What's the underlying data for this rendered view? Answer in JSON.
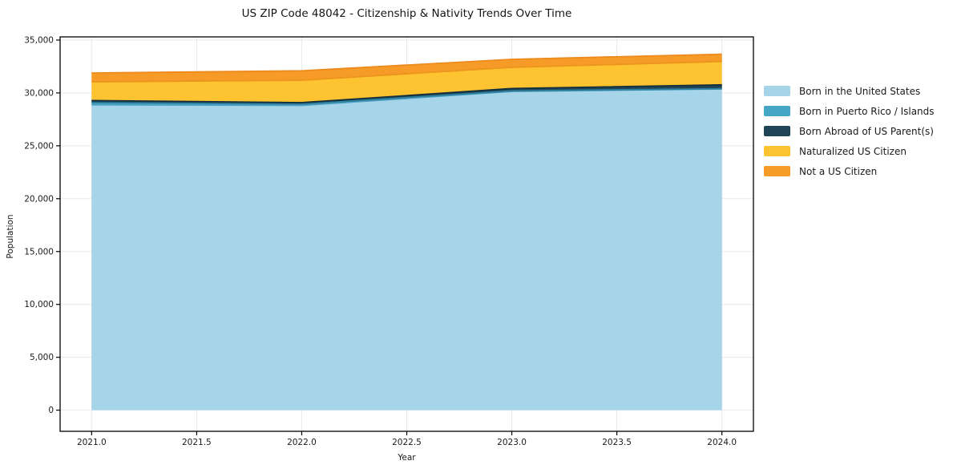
{
  "title": "US ZIP Code 48042 - Citizenship & Nativity Trends Over Time",
  "chart_data": {
    "type": "area",
    "stacked": true,
    "title": "US ZIP Code 48042 - Citizenship & Nativity Trends Over Time",
    "xlabel": "Year",
    "ylabel": "Population",
    "x": [
      2021,
      2022,
      2023,
      2024
    ],
    "series": [
      {
        "id": "born_us",
        "name": "Born in the United States",
        "color": "#a6d4e8",
        "edge": "#4d9fc2",
        "values": [
          28880,
          28820,
          30140,
          30370
        ]
      },
      {
        "id": "pr_islands",
        "name": "Born in Puerto Rico / Islands",
        "color": "#46a6c6",
        "edge": "#2e7f9e",
        "values": [
          200,
          120,
          50,
          30
        ]
      },
      {
        "id": "born_abroad",
        "name": "Born Abroad of US Parent(s)",
        "color": "#1f4557",
        "edge": "#14303e",
        "values": [
          200,
          140,
          230,
          370
        ]
      },
      {
        "id": "naturalized",
        "name": "Naturalized US Citizen",
        "color": "#fdc330",
        "edge": "#ec941d",
        "values": [
          1770,
          2120,
          2000,
          2200
        ]
      },
      {
        "id": "not_citizen",
        "name": "Not a US Citizen",
        "color": "#f79b28",
        "edge": "#ed8a1d",
        "values": [
          840,
          890,
          760,
          690
        ]
      }
    ],
    "totals": [
      31890,
      32090,
      33180,
      33660
    ],
    "x_ticks": [
      2021,
      2021.5,
      2022,
      2022.5,
      2023,
      2023.5,
      2024
    ],
    "x_tick_labels": [
      "2021.0",
      "2021.5",
      "2022.0",
      "2022.5",
      "2023.0",
      "2023.5",
      "2024.0"
    ],
    "y_ticks": [
      0,
      5000,
      10000,
      15000,
      20000,
      25000,
      30000,
      35000
    ],
    "y_tick_labels": [
      "0",
      "5,000",
      "10,000",
      "15,000",
      "20,000",
      "25,000",
      "30,000",
      "35,000"
    ],
    "xlim": [
      2020.85,
      2024.15
    ],
    "ylim": [
      -2000,
      35300
    ],
    "grid": true,
    "grid_color": "#e9e9e9",
    "axis_color": "#000000",
    "tick_label_color": "#1a1a1a",
    "legend_position": "right"
  }
}
